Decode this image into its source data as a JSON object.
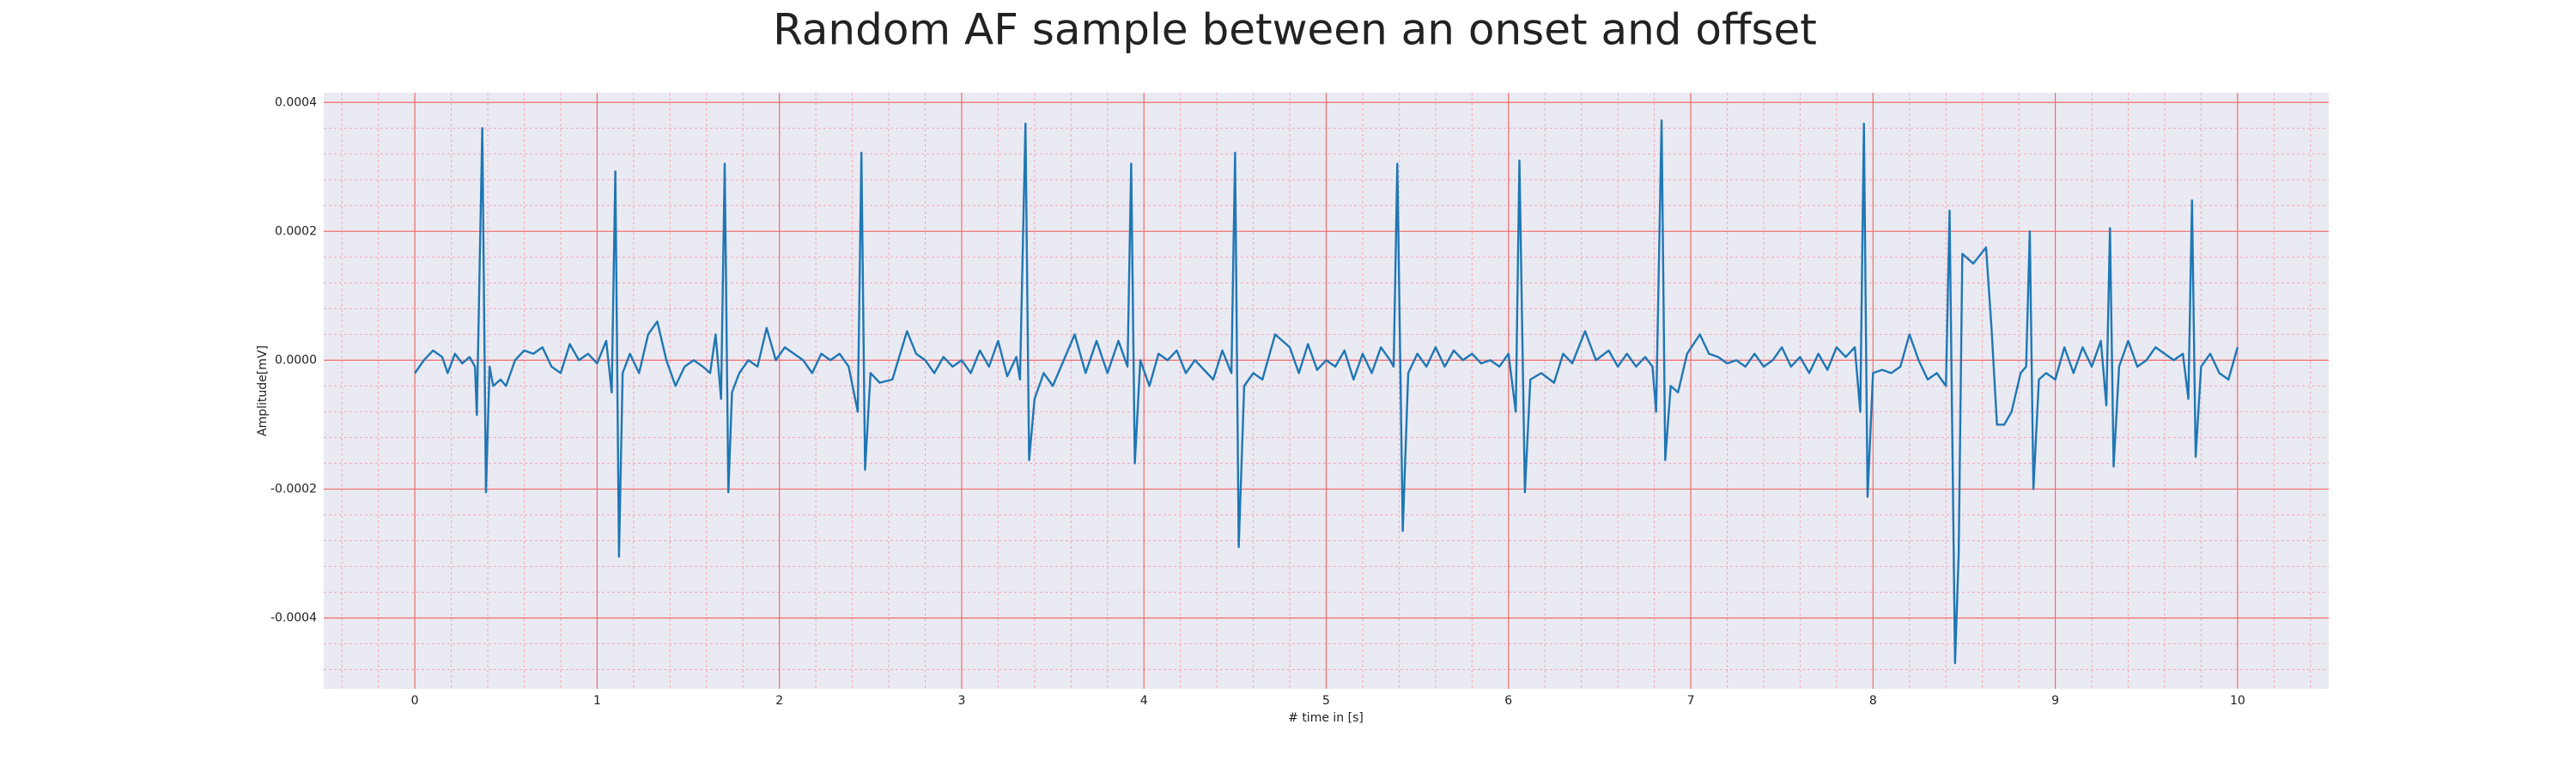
{
  "chart_data": {
    "type": "line",
    "title": "Random AF sample between an onset and offset",
    "xlabel": "# time in [s]",
    "ylabel": "Amplitude[mV]",
    "color": "#1f77b4",
    "grid": true,
    "minor_grid": true,
    "xlim": [
      -0.5,
      10.5
    ],
    "ylim": [
      -0.00051,
      0.000415
    ],
    "xticks": [
      0,
      1,
      2,
      3,
      4,
      5,
      6,
      7,
      8,
      9,
      10
    ],
    "yticks": [
      -0.0004,
      -0.0002,
      {
        "value": 0,
        "label": "0.0000"
      },
      0.0002,
      0.0004
    ],
    "x": [
      0.0,
      0.05,
      0.1,
      0.15,
      0.18,
      0.22,
      0.26,
      0.3,
      0.33,
      0.34,
      0.37,
      0.39,
      0.41,
      0.43,
      0.47,
      0.5,
      0.55,
      0.6,
      0.65,
      0.7,
      0.75,
      0.8,
      0.85,
      0.9,
      0.95,
      1.0,
      1.05,
      1.08,
      1.1,
      1.12,
      1.14,
      1.18,
      1.23,
      1.28,
      1.33,
      1.38,
      1.43,
      1.48,
      1.53,
      1.58,
      1.62,
      1.65,
      1.68,
      1.7,
      1.72,
      1.74,
      1.78,
      1.83,
      1.88,
      1.93,
      1.98,
      2.03,
      2.08,
      2.13,
      2.18,
      2.23,
      2.28,
      2.33,
      2.38,
      2.43,
      2.45,
      2.47,
      2.5,
      2.55,
      2.62,
      2.7,
      2.75,
      2.8,
      2.85,
      2.9,
      2.95,
      3.0,
      3.05,
      3.1,
      3.15,
      3.2,
      3.25,
      3.3,
      3.32,
      3.35,
      3.37,
      3.4,
      3.45,
      3.5,
      3.56,
      3.62,
      3.68,
      3.74,
      3.8,
      3.86,
      3.91,
      3.93,
      3.95,
      3.98,
      4.03,
      4.08,
      4.13,
      4.18,
      4.23,
      4.28,
      4.33,
      4.38,
      4.43,
      4.48,
      4.5,
      4.52,
      4.55,
      4.6,
      4.65,
      4.72,
      4.8,
      4.85,
      4.9,
      4.95,
      5.0,
      5.05,
      5.1,
      5.15,
      5.2,
      5.25,
      5.3,
      5.35,
      5.37,
      5.39,
      5.42,
      5.45,
      5.5,
      5.55,
      5.6,
      5.65,
      5.7,
      5.75,
      5.8,
      5.85,
      5.9,
      5.95,
      6.0,
      6.04,
      6.06,
      6.09,
      6.12,
      6.18,
      6.25,
      6.3,
      6.35,
      6.42,
      6.48,
      6.55,
      6.6,
      6.65,
      6.7,
      6.75,
      6.79,
      6.81,
      6.84,
      6.86,
      6.89,
      6.93,
      6.98,
      7.05,
      7.1,
      7.15,
      7.2,
      7.25,
      7.3,
      7.35,
      7.4,
      7.45,
      7.5,
      7.55,
      7.6,
      7.65,
      7.7,
      7.75,
      7.8,
      7.85,
      7.9,
      7.93,
      7.95,
      7.97,
      8.0,
      8.05,
      8.1,
      8.15,
      8.2,
      8.25,
      8.3,
      8.35,
      8.4,
      8.42,
      8.45,
      8.47,
      8.49,
      8.55,
      8.62,
      8.65,
      8.68,
      8.72,
      8.76,
      8.81,
      8.84,
      8.86,
      8.88,
      8.91,
      8.95,
      9.0,
      9.05,
      9.1,
      9.15,
      9.2,
      9.25,
      9.28,
      9.3,
      9.32,
      9.35,
      9.4,
      9.45,
      9.5,
      9.55,
      9.6,
      9.65,
      9.7,
      9.73,
      9.75,
      9.77,
      9.8,
      9.85,
      9.9,
      9.95,
      10.0
    ],
    "values": [
      -2e-05,
      0.0,
      1.5e-05,
      5e-06,
      -2e-05,
      1e-05,
      -5e-06,
      5e-06,
      -1e-05,
      -8.5e-05,
      0.00036,
      -0.000205,
      -1e-05,
      -4e-05,
      -3e-05,
      -4e-05,
      0.0,
      1.5e-05,
      1e-05,
      2e-05,
      -1e-05,
      -2e-05,
      2.5e-05,
      0.0,
      1e-05,
      -5e-06,
      3e-05,
      -5e-05,
      0.000293,
      -0.000305,
      -2e-05,
      1e-05,
      -2e-05,
      4e-05,
      6e-05,
      0.0,
      -4e-05,
      -1e-05,
      0.0,
      -1e-05,
      -2e-05,
      4e-05,
      -6e-05,
      0.000305,
      -0.000205,
      -5e-05,
      -2e-05,
      0.0,
      -1e-05,
      5e-05,
      0.0,
      2e-05,
      1e-05,
      0.0,
      -2e-05,
      1e-05,
      0.0,
      1e-05,
      -1e-05,
      -8e-05,
      0.000322,
      -0.00017,
      -2e-05,
      -3.5e-05,
      -3e-05,
      4.5e-05,
      1e-05,
      0.0,
      -2e-05,
      5e-06,
      -1e-05,
      0.0,
      -2e-05,
      1.5e-05,
      -1e-05,
      3e-05,
      -2.5e-05,
      5e-06,
      -3e-05,
      0.000367,
      -0.000155,
      -6e-05,
      -2e-05,
      -4e-05,
      0.0,
      4e-05,
      -2e-05,
      3e-05,
      -2e-05,
      3e-05,
      -1e-05,
      0.000305,
      -0.00016,
      0.0,
      -4e-05,
      1e-05,
      0.0,
      1.5e-05,
      -2e-05,
      0.0,
      -1.5e-05,
      -3e-05,
      1.5e-05,
      -2e-05,
      0.000322,
      -0.00029,
      -4e-05,
      -2e-05,
      -3e-05,
      4e-05,
      2e-05,
      -2e-05,
      2.5e-05,
      -1.5e-05,
      0.0,
      -1e-05,
      1.5e-05,
      -3e-05,
      1e-05,
      -2e-05,
      2e-05,
      0.0,
      -1e-05,
      0.000305,
      -0.000265,
      -2e-05,
      1e-05,
      -1e-05,
      2e-05,
      -1e-05,
      1.5e-05,
      0.0,
      1e-05,
      -5e-06,
      0.0,
      -1e-05,
      1e-05,
      -8e-05,
      0.00031,
      -0.000205,
      -3e-05,
      -2e-05,
      -3.5e-05,
      1e-05,
      -5e-06,
      4.5e-05,
      0.0,
      1.5e-05,
      -1e-05,
      1e-05,
      -1e-05,
      5e-06,
      -1e-05,
      -8e-05,
      0.000372,
      -0.000155,
      -4e-05,
      -5e-05,
      1e-05,
      4e-05,
      1e-05,
      5e-06,
      -5e-06,
      0.0,
      -1e-05,
      1e-05,
      -1e-05,
      0.0,
      2e-05,
      -1e-05,
      5e-06,
      -2e-05,
      1e-05,
      -1.5e-05,
      2e-05,
      5e-06,
      2e-05,
      -8e-05,
      0.000367,
      -0.000212,
      -2e-05,
      -1.5e-05,
      -2e-05,
      -1e-05,
      4e-05,
      0.0,
      -3e-05,
      -2e-05,
      -4e-05,
      0.000232,
      -0.00047,
      -0.0003,
      0.000165,
      0.00015,
      0.000175,
      5e-05,
      -0.0001,
      -0.0001,
      -8e-05,
      -2e-05,
      -1e-05,
      0.0002,
      -0.0002,
      -3e-05,
      -2e-05,
      -3e-05,
      2e-05,
      -2e-05,
      2e-05,
      -1e-05,
      3e-05,
      -7e-05,
      0.000205,
      -0.000165,
      -1e-05,
      3e-05,
      -1e-05,
      0.0,
      2e-05,
      1e-05,
      0.0,
      1e-05,
      -6e-05,
      0.000248,
      -0.00015,
      -1e-05,
      1e-05,
      -2e-05,
      -3e-05,
      2e-05
    ]
  }
}
